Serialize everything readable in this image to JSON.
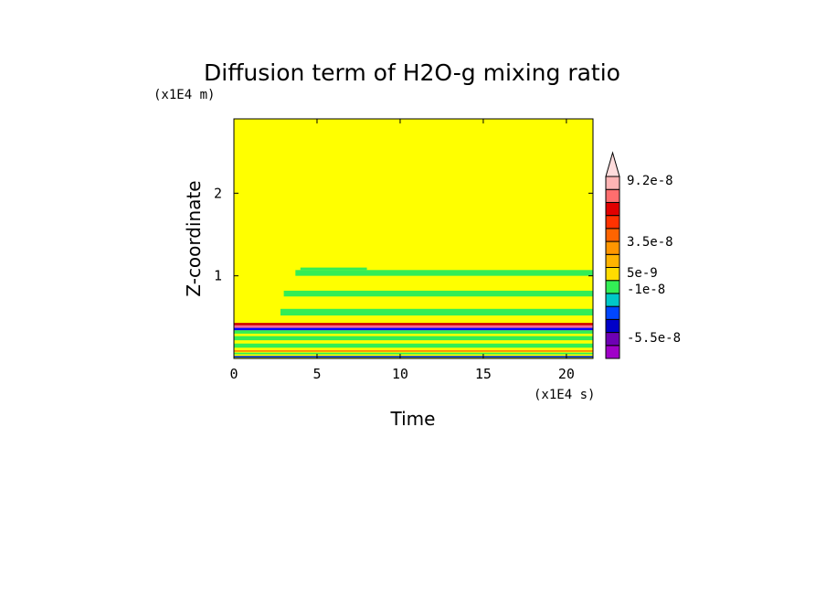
{
  "chart_data": {
    "type": "heatmap",
    "title": "Diffusion term of H2O-g mixing ratio",
    "xlabel": "Time",
    "ylabel": "Z-coordinate",
    "x_unit": "(x1E4 s)",
    "y_unit": "(x1E4 m)",
    "xlim": [
      0,
      21.6
    ],
    "ylim": [
      0,
      2.9
    ],
    "x_ticks": [
      0,
      5,
      10,
      15,
      20
    ],
    "y_ticks": [
      1,
      2
    ],
    "background_value_color": "#ffff00",
    "regions": [
      {
        "x0": 3.7,
        "x1": 21.6,
        "y0": 1.0,
        "y1": 1.07,
        "color": "#33ee55"
      },
      {
        "x0": 4.0,
        "x1": 8.0,
        "y0": 1.07,
        "y1": 1.1,
        "color": "#33ee55"
      },
      {
        "x0": 3.0,
        "x1": 21.6,
        "y0": 0.75,
        "y1": 0.82,
        "color": "#33ee55"
      },
      {
        "x0": 2.8,
        "x1": 21.6,
        "y0": 0.52,
        "y1": 0.6,
        "color": "#33ee55"
      },
      {
        "x0": 0.0,
        "x1": 21.6,
        "y0": 0.4,
        "y1": 0.43,
        "color": "#cc0000"
      },
      {
        "x0": 0.0,
        "x1": 21.6,
        "y0": 0.37,
        "y1": 0.4,
        "color": "#ff6699"
      },
      {
        "x0": 0.0,
        "x1": 21.6,
        "y0": 0.34,
        "y1": 0.37,
        "color": "#0000ff"
      },
      {
        "x0": 0.0,
        "x1": 21.6,
        "y0": 0.3,
        "y1": 0.34,
        "color": "#33ee55"
      },
      {
        "x0": 0.0,
        "x1": 21.6,
        "y0": 0.22,
        "y1": 0.27,
        "color": "#33ee55"
      },
      {
        "x0": 0.0,
        "x1": 21.6,
        "y0": 0.13,
        "y1": 0.18,
        "color": "#33ee55"
      },
      {
        "x0": 0.0,
        "x1": 21.6,
        "y0": 0.08,
        "y1": 0.1,
        "color": "#ff8800"
      },
      {
        "x0": 0.0,
        "x1": 21.6,
        "y0": 0.05,
        "y1": 0.07,
        "color": "#33ee55"
      },
      {
        "x0": 0.0,
        "x1": 21.6,
        "y0": 0.01,
        "y1": 0.03,
        "color": "#0033cc"
      }
    ],
    "colorbar": {
      "boxes": [
        "#a000c8",
        "#6e00b4",
        "#0000c8",
        "#0046ff",
        "#00c8c8",
        "#33ee55",
        "#ffdc00",
        "#ffb400",
        "#ff9600",
        "#ff6400",
        "#ff3200",
        "#e10000",
        "#ff6e6e",
        "#ffb4b4"
      ],
      "extend_top_color": "#ffdcdc",
      "labels": [
        "9.2e-8",
        "3.5e-8",
        "5e-9",
        "-1e-8",
        "-5.5e-8"
      ]
    }
  }
}
